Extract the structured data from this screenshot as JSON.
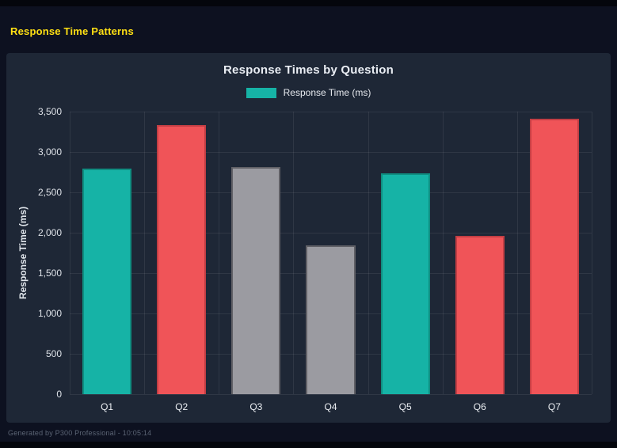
{
  "page": {
    "title": "Response Time Patterns",
    "title_color": "#ffe013"
  },
  "footer": {
    "text": "Generated by P300 Professional - 10:05:14"
  },
  "colors": {
    "teal": "#16b3a6",
    "red": "#f05458",
    "gray": "#9b9ba1",
    "panel_background": "#1e2736",
    "page_background": "#0d1120"
  },
  "chart_data": {
    "type": "bar",
    "title": "Response Times by Question",
    "legend": [
      {
        "label": "Response Time (ms)",
        "color": "#16b3a6"
      }
    ],
    "legend_position": "top",
    "categories": [
      "Q1",
      "Q2",
      "Q3",
      "Q4",
      "Q5",
      "Q6",
      "Q7"
    ],
    "values": [
      2795,
      3330,
      2810,
      1845,
      2735,
      1960,
      3410
    ],
    "bar_colors": [
      "#16b3a6",
      "#f05458",
      "#9b9ba1",
      "#9b9ba1",
      "#16b3a6",
      "#f05458",
      "#f05458"
    ],
    "bar_border_colors": [
      "#0f8e81",
      "#c23e44",
      "#606066",
      "#606066",
      "#0f8e81",
      "#c23e44",
      "#c23e44"
    ],
    "xlabel": "",
    "ylabel": "Response Time (ms)",
    "ylim": [
      0,
      3500
    ],
    "ytick_step": 500,
    "ytick_labels": [
      "0",
      "500",
      "1,000",
      "1,500",
      "2,000",
      "2,500",
      "3,000",
      "3,500"
    ],
    "grid": true
  }
}
